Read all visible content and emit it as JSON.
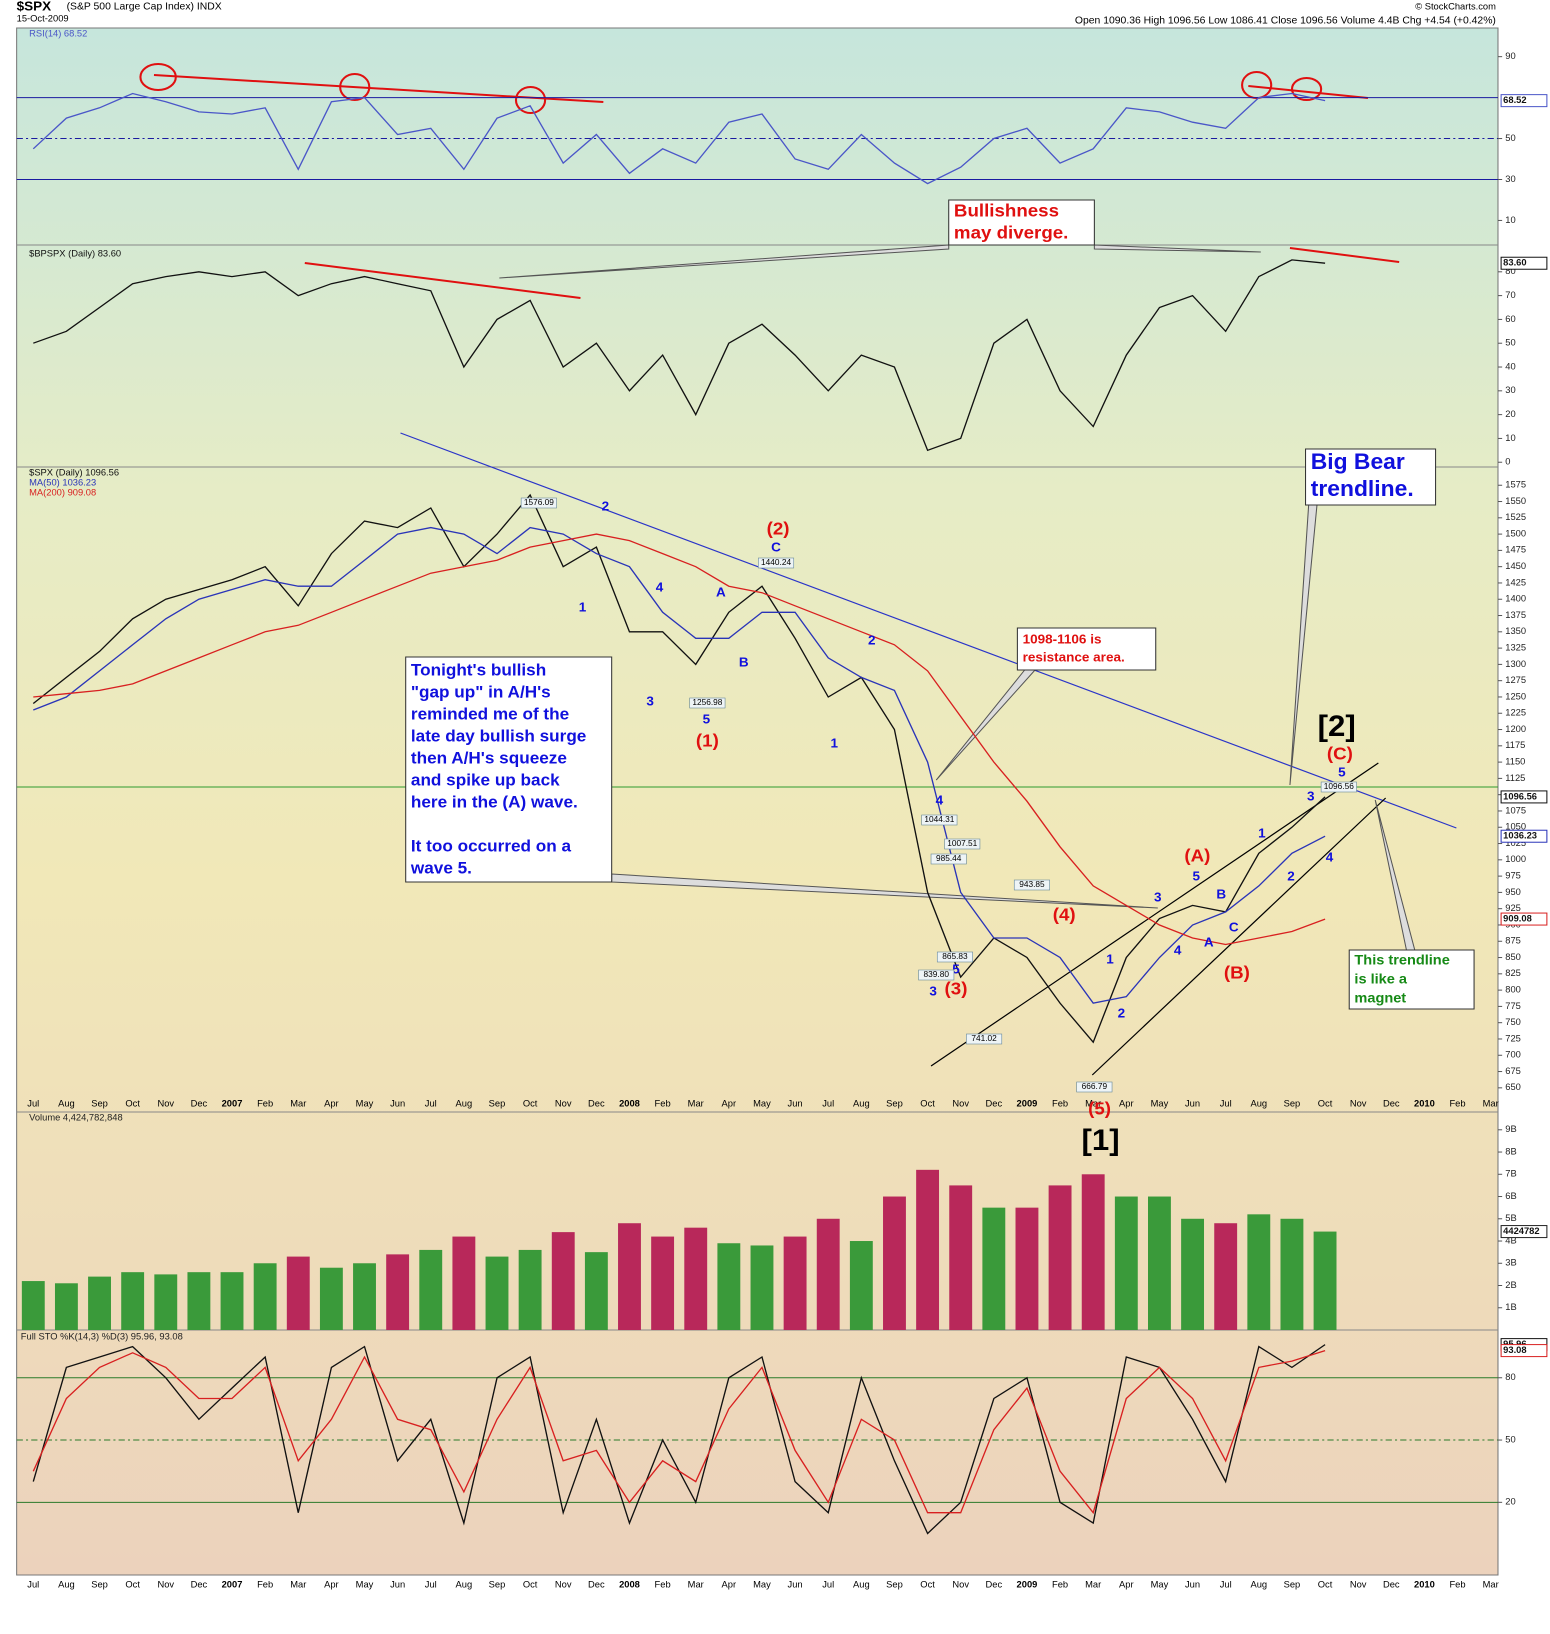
{
  "header": {
    "symbol": "$SPX",
    "name": "(S&P 500 Large Cap Index) INDX",
    "date": "15-Oct-2009",
    "credit": "© StockCharts.com",
    "quote": "Open 1090.36  High 1096.56  Low 1086.41  Close 1096.56  Volume 4.4B  Chg +4.54 (+0.42%)"
  },
  "chart_data": [
    {
      "type": "line",
      "ylim": [
        -2,
        104
      ],
      "yticks": [
        10,
        30,
        50,
        90
      ],
      "ref_lines": [
        70,
        50,
        30
      ],
      "ref_color": "#1a1aa0",
      "series": [
        {
          "name": "RSI(14) 68.52",
          "color": "#4a56c8",
          "tag": "68.52",
          "values": [
            45,
            60,
            65,
            72,
            68,
            63,
            62,
            65,
            35,
            68,
            70,
            52,
            55,
            35,
            60,
            66,
            38,
            52,
            33,
            45,
            38,
            58,
            62,
            40,
            35,
            52,
            38,
            28,
            36,
            50,
            55,
            38,
            45,
            65,
            63,
            58,
            55,
            70,
            72,
            68.52,
            null,
            null,
            null,
            null,
            null
          ]
        }
      ]
    },
    {
      "type": "line",
      "ylim": [
        -2,
        90
      ],
      "yticks": [
        0,
        10,
        20,
        30,
        40,
        50,
        60,
        70,
        80
      ],
      "series": [
        {
          "name": "$BPSPX (Daily) 83.60",
          "color": "#111111",
          "tag": "83.60",
          "values": [
            50,
            55,
            65,
            75,
            78,
            80,
            78,
            80,
            70,
            75,
            78,
            75,
            72,
            40,
            60,
            68,
            40,
            50,
            30,
            45,
            20,
            50,
            58,
            45,
            30,
            45,
            40,
            5,
            10,
            50,
            60,
            30,
            15,
            45,
            65,
            70,
            55,
            78,
            85,
            83.6,
            null,
            null,
            null,
            null,
            null
          ]
        }
      ]
    },
    {
      "type": "line",
      "ylim": [
        639,
        1603
      ],
      "yticks": [
        650,
        675,
        700,
        725,
        750,
        775,
        800,
        825,
        850,
        875,
        900,
        925,
        950,
        975,
        1000,
        1025,
        1050,
        1075,
        1100,
        1125,
        1150,
        1175,
        1200,
        1225,
        1250,
        1275,
        1300,
        1325,
        1350,
        1375,
        1400,
        1425,
        1450,
        1475,
        1500,
        1525,
        1550,
        1575
      ],
      "categories": [
        "Jul",
        "Aug",
        "Sep",
        "Oct",
        "Nov",
        "Dec",
        "2007",
        "Feb",
        "Mar",
        "Apr",
        "May",
        "Jun",
        "Jul",
        "Aug",
        "Sep",
        "Oct",
        "Nov",
        "Dec",
        "2008",
        "Feb",
        "Mar",
        "Apr",
        "May",
        "Jun",
        "Jul",
        "Aug",
        "Sep",
        "Oct",
        "Nov",
        "Dec",
        "2009",
        "Feb",
        "Mar",
        "Apr",
        "May",
        "Jun",
        "Jul",
        "Aug",
        "Sep",
        "Oct",
        "Nov",
        "Dec",
        "2010",
        "Feb",
        "Mar"
      ],
      "series": [
        {
          "name": "$SPX (Daily) 1096.56",
          "color": "#111111",
          "tag": "1096.56",
          "values": [
            1240,
            1280,
            1320,
            1370,
            1400,
            1415,
            1430,
            1450,
            1390,
            1470,
            1520,
            1510,
            1540,
            1450,
            1500,
            1560,
            1450,
            1480,
            1350,
            1350,
            1300,
            1380,
            1420,
            1340,
            1250,
            1280,
            1200,
            950,
            820,
            880,
            850,
            780,
            720,
            850,
            910,
            930,
            920,
            1010,
            1050,
            1096.56,
            null,
            null,
            null,
            null,
            null
          ]
        },
        {
          "name": "MA(50) 1036.23",
          "color": "#2a34b8",
          "tag": "1036.23",
          "values": [
            1230,
            1250,
            1290,
            1330,
            1370,
            1400,
            1415,
            1430,
            1420,
            1420,
            1460,
            1500,
            1510,
            1500,
            1470,
            1510,
            1500,
            1470,
            1450,
            1380,
            1340,
            1340,
            1380,
            1380,
            1310,
            1280,
            1260,
            1150,
            950,
            880,
            880,
            850,
            780,
            790,
            850,
            900,
            920,
            960,
            1010,
            1036.23,
            null,
            null,
            null,
            null,
            null
          ]
        },
        {
          "name": "MA(200) 909.08",
          "color": "#d82020",
          "tag": "909.08",
          "values": [
            1250,
            1255,
            1260,
            1270,
            1290,
            1310,
            1330,
            1350,
            1360,
            1380,
            1400,
            1420,
            1440,
            1450,
            1460,
            1480,
            1490,
            1500,
            1490,
            1470,
            1450,
            1420,
            1410,
            1390,
            1370,
            1350,
            1330,
            1290,
            1220,
            1150,
            1090,
            1020,
            960,
            930,
            900,
            880,
            870,
            880,
            890,
            909.08,
            null,
            null,
            null,
            null,
            null
          ]
        }
      ]
    },
    {
      "type": "bar",
      "ylim": [
        0,
        9800000000
      ],
      "yticks": [
        {
          "value": 1000000000,
          "label": "1B"
        },
        {
          "value": 2000000000,
          "label": "2B"
        },
        {
          "value": 3000000000,
          "label": "3B"
        },
        {
          "value": 4000000000,
          "label": "4B"
        },
        {
          "value": 5000000000,
          "label": "5B"
        },
        {
          "value": 6000000000,
          "label": "6B"
        },
        {
          "value": 7000000000,
          "label": "7B"
        },
        {
          "value": 8000000000,
          "label": "8B"
        },
        {
          "value": 9000000000,
          "label": "9B"
        }
      ],
      "series": [
        {
          "name": "Volume 4,424,782,848",
          "tag": "4424782",
          "values": [
            2200000000,
            2100000000,
            2400000000,
            2600000000,
            2500000000,
            2600000000,
            2600000000,
            3000000000,
            3300000000,
            2800000000,
            3000000000,
            3400000000,
            3600000000,
            4200000000,
            3300000000,
            3600000000,
            4400000000,
            3500000000,
            4800000000,
            4200000000,
            4600000000,
            3900000000,
            3800000000,
            4200000000,
            5000000000,
            4000000000,
            6000000000,
            7200000000,
            6500000000,
            5500000000,
            5500000000,
            6500000000,
            7000000000,
            6000000000,
            6000000000,
            5000000000,
            4800000000,
            5200000000,
            5000000000,
            4424782848,
            null,
            null,
            null,
            null,
            null
          ],
          "colors": [
            "#3a9a3a",
            "#3a9a3a",
            "#3a9a3a",
            "#3a9a3a",
            "#3a9a3a",
            "#3a9a3a",
            "#3a9a3a",
            "#3a9a3a",
            "#b8285a",
            "#3a9a3a",
            "#3a9a3a",
            "#b8285a",
            "#3a9a3a",
            "#b8285a",
            "#3a9a3a",
            "#3a9a3a",
            "#b8285a",
            "#3a9a3a",
            "#b8285a",
            "#b8285a",
            "#b8285a",
            "#3a9a3a",
            "#3a9a3a",
            "#b8285a",
            "#b8285a",
            "#3a9a3a",
            "#b8285a",
            "#b8285a",
            "#b8285a",
            "#3a9a3a",
            "#b8285a",
            "#b8285a",
            "#b8285a",
            "#3a9a3a",
            "#3a9a3a",
            "#3a9a3a",
            "#b8285a",
            "#3a9a3a",
            "#3a9a3a",
            "#3a9a3a",
            "#3a9a3a",
            "#3a9a3a",
            "#3a9a3a",
            "#3a9a3a",
            "#3a9a3a"
          ]
        }
      ]
    },
    {
      "type": "line",
      "ylim": [
        -15,
        103
      ],
      "yticks": [
        20,
        50,
        80
      ],
      "ref_lines": [
        80,
        50,
        20
      ],
      "ref_color": "#2a7a2a",
      "legend": "Full STO %K(14,3) %D(3) 95.96, 93.08",
      "categories": [
        "Jul",
        "Aug",
        "Sep",
        "Oct",
        "Nov",
        "Dec",
        "2007",
        "Feb",
        "Mar",
        "Apr",
        "May",
        "Jun",
        "Jul",
        "Aug",
        "Sep",
        "Oct",
        "Nov",
        "Dec",
        "2008",
        "Feb",
        "Mar",
        "Apr",
        "May",
        "Jun",
        "Jul",
        "Aug",
        "Sep",
        "Oct",
        "Nov",
        "Dec",
        "2009",
        "Feb",
        "Mar",
        "Apr",
        "May",
        "Jun",
        "Jul",
        "Aug",
        "Sep",
        "Oct",
        "Nov",
        "Dec",
        "2010",
        "Feb",
        "Mar"
      ],
      "series": [
        {
          "color": "#111111",
          "tag": "95.96",
          "values": [
            30,
            85,
            90,
            95,
            80,
            60,
            75,
            90,
            15,
            85,
            95,
            40,
            60,
            10,
            80,
            90,
            15,
            60,
            10,
            50,
            20,
            80,
            90,
            30,
            15,
            80,
            40,
            5,
            20,
            70,
            80,
            20,
            10,
            90,
            85,
            60,
            30,
            95,
            85,
            95.96,
            null,
            null,
            null,
            null,
            null
          ]
        },
        {
          "color": "#d82020",
          "tag": "93.08",
          "values": [
            35,
            70,
            85,
            92,
            85,
            70,
            70,
            85,
            40,
            60,
            90,
            60,
            55,
            25,
            60,
            85,
            40,
            45,
            20,
            40,
            30,
            65,
            85,
            45,
            20,
            60,
            50,
            15,
            15,
            55,
            75,
            35,
            15,
            70,
            85,
            70,
            40,
            85,
            88,
            93.08,
            null,
            null,
            null,
            null,
            null
          ]
        }
      ]
    }
  ],
  "annotations": [
    {
      "text": "2",
      "kind": "wave",
      "color": "#1010dd"
    },
    {
      "text": "1",
      "kind": "wave",
      "color": "#1010dd"
    },
    {
      "text": "4",
      "kind": "wave",
      "color": "#1010dd"
    },
    {
      "text": "3",
      "kind": "wave",
      "color": "#1010dd"
    },
    {
      "text": "A",
      "kind": "wave",
      "color": "#1010dd"
    },
    {
      "text": "B",
      "kind": "wave",
      "color": "#1010dd"
    },
    {
      "text": "C",
      "kind": "wave",
      "color": "#1010dd"
    },
    {
      "text": "5",
      "kind": "wave",
      "color": "#1010dd"
    },
    {
      "text": "2",
      "kind": "wave",
      "color": "#1010dd"
    },
    {
      "text": "1",
      "kind": "wave",
      "color": "#1010dd"
    },
    {
      "text": "4",
      "kind": "wave",
      "color": "#1010dd"
    },
    {
      "text": "3",
      "kind": "wave",
      "color": "#1010dd"
    },
    {
      "text": "5",
      "kind": "wave",
      "color": "#1010dd"
    },
    {
      "text": "1",
      "kind": "wave",
      "color": "#1010dd"
    },
    {
      "text": "2",
      "kind": "wave",
      "color": "#1010dd"
    },
    {
      "text": "3",
      "kind": "wave",
      "color": "#1010dd"
    },
    {
      "text": "4",
      "kind": "wave",
      "color": "#1010dd"
    },
    {
      "text": "5",
      "kind": "wave",
      "color": "#1010dd"
    },
    {
      "text": "A",
      "kind": "wave",
      "color": "#1010dd"
    },
    {
      "text": "B",
      "kind": "wave",
      "color": "#1010dd"
    },
    {
      "text": "C",
      "kind": "wave",
      "color": "#1010dd"
    },
    {
      "text": "1",
      "kind": "wave",
      "color": "#1010dd"
    },
    {
      "text": "2",
      "kind": "wave",
      "color": "#1010dd"
    },
    {
      "text": "3",
      "kind": "wave",
      "color": "#1010dd"
    },
    {
      "text": "4",
      "kind": "wave",
      "color": "#1010dd"
    },
    {
      "text": "5",
      "kind": "wave",
      "color": "#1010dd"
    },
    {
      "text": "(2)",
      "kind": "major",
      "color": "#e01010"
    },
    {
      "text": "(1)",
      "kind": "major",
      "color": "#e01010"
    },
    {
      "text": "(3)",
      "kind": "major",
      "color": "#e01010"
    },
    {
      "text": "(4)",
      "kind": "major",
      "color": "#e01010"
    },
    {
      "text": "(A)",
      "kind": "major",
      "color": "#e01010"
    },
    {
      "text": "(B)",
      "kind": "major",
      "color": "#e01010"
    },
    {
      "text": "(C)",
      "kind": "major",
      "color": "#e01010"
    },
    {
      "text": "(5)",
      "kind": "major",
      "color": "#e01010"
    },
    {
      "text": "[2]",
      "kind": "big",
      "color": "#000000"
    },
    {
      "text": "[1]",
      "kind": "big",
      "color": "#000000"
    },
    {
      "text": "1576.09",
      "kind": "tag",
      "color": "#000000"
    },
    {
      "text": "1440.24",
      "kind": "tag",
      "color": "#000000"
    },
    {
      "text": "1256.98",
      "kind": "tag",
      "color": "#000000"
    },
    {
      "text": "1044.31",
      "kind": "tag",
      "color": "#000000"
    },
    {
      "text": "1007.51",
      "kind": "tag",
      "color": "#000000"
    },
    {
      "text": "985.44",
      "kind": "tag",
      "color": "#000000"
    },
    {
      "text": "943.85",
      "kind": "tag",
      "color": "#000000"
    },
    {
      "text": "865.83",
      "kind": "tag",
      "color": "#000000"
    },
    {
      "text": "839.80",
      "kind": "tag",
      "color": "#000000"
    },
    {
      "text": "741.02",
      "kind": "tag",
      "color": "#000000"
    },
    {
      "text": "666.79",
      "kind": "tag",
      "color": "#000000"
    },
    {
      "text": "1096.56",
      "kind": "tag",
      "color": "#000000"
    }
  ],
  "callouts": [
    {
      "lines": [
        "Bullishness",
        "may diverge."
      ],
      "color": "#e01010"
    },
    {
      "lines": [
        "Big Bear",
        "trendline."
      ],
      "color": "#1010dd"
    },
    {
      "lines": [
        "1098-1106 is",
        "resistance area."
      ],
      "color": "#e01010"
    },
    {
      "lines": [
        "Tonight's bullish",
        "\"gap up\" in A/H's",
        "reminded me of the",
        "late day bullish surge",
        "then A/H's squeeze",
        "and spike up back",
        "here in the (A) wave.",
        "It too occurred on a",
        "wave 5."
      ],
      "color": "#1010dd"
    },
    {
      "lines": [
        "This trendline",
        "is like a",
        "magnet"
      ],
      "color": "#168a16"
    }
  ]
}
